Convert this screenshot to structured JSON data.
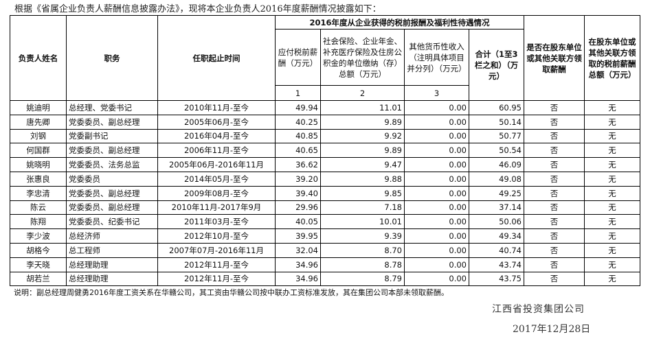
{
  "intro": "根据《省属企业负责人薪酬信息披露办法》，现将本企业负责人2016年度薪酬情况披露如下：",
  "headers": {
    "name": "负责人姓名",
    "position": "职务",
    "term": "任职起止时间",
    "group": "2016年度从企业获得的税前报酬及福利性待遇情况",
    "salary": "应付税前薪酬（万元）",
    "insurance": "社会保险、企业年金、补充医疗保险及住房公积金的单位缴纳（存）总额（万元）",
    "other": "其他货币性收入（注明具体项目并分列）（万元）",
    "total": "合计（1至3栏之和）（万元）",
    "shareholder": "是否在股东单位或其他关联方领取薪酬",
    "shareholder_amount": "在股东单位或其他关联方领取的税前薪酬总额（万元）",
    "n1": "1",
    "n2": "2",
    "n3": "3"
  },
  "rows": [
    [
      "姚迪明",
      "总经理、党委书记",
      "2010年11月-至今",
      "49.94",
      "11.01",
      "0.00",
      "60.95",
      "否",
      "无"
    ],
    [
      "唐先卿",
      "党委委员、副总经理",
      "2005年06月-至今",
      "40.25",
      "9.89",
      "0.00",
      "50.14",
      "否",
      "无"
    ],
    [
      "刘钢",
      "党委副书记",
      "2016年04月-至今",
      "40.85",
      "9.92",
      "0.00",
      "50.77",
      "否",
      "无"
    ],
    [
      "何国群",
      "党委委员、副总经理",
      "2006年11月-至今",
      "40.65",
      "9.89",
      "0.00",
      "50.54",
      "否",
      "无"
    ],
    [
      "姚晓明",
      "党委委员、法务总监",
      "2005年06月-2016年11月",
      "36.62",
      "9.47",
      "0.00",
      "46.09",
      "否",
      "无"
    ],
    [
      "张惠良",
      "党委委员",
      "2014年05月-至今",
      "39.20",
      "9.88",
      "0.00",
      "49.08",
      "否",
      "无"
    ],
    [
      "李忠清",
      "党委委员、副总经理",
      "2009年08月-至今",
      "39.40",
      "9.85",
      "0.00",
      "49.25",
      "否",
      "无"
    ],
    [
      "陈云",
      "党委委员、副总经理",
      "2010年11月-2017年9月",
      "29.96",
      "7.18",
      "0.00",
      "37.14",
      "否",
      "无"
    ],
    [
      "陈翔",
      "党委委员、纪委书记",
      "2011年03月-至今",
      "40.05",
      "10.01",
      "0.00",
      "50.06",
      "否",
      "无"
    ],
    [
      "李少波",
      "总经济师",
      "2012年10月-至今",
      "39.95",
      "9.39",
      "0.00",
      "49.34",
      "否",
      "无"
    ],
    [
      "胡格今",
      "总工程师",
      "2007年07月-2016年11月",
      "32.04",
      "8.70",
      "0.00",
      "40.74",
      "否",
      "无"
    ],
    [
      "李天晓",
      "总经理助理",
      "2012年11月-至今",
      "34.96",
      "8.78",
      "0.00",
      "43.74",
      "否",
      "无"
    ],
    [
      "胡若兰",
      "总经理助理",
      "2012年11月-至今",
      "34.96",
      "8.79",
      "0.00",
      "43.75",
      "否",
      "无"
    ]
  ],
  "note": "说明：副总经理周健勇2016年度工资关系在华赣公司，其工资由华赣公司按中联办工资标准发放，其在集团公司本部未领取薪酬。",
  "company": "江西省投资集团公司",
  "date": "2017年12月28日"
}
